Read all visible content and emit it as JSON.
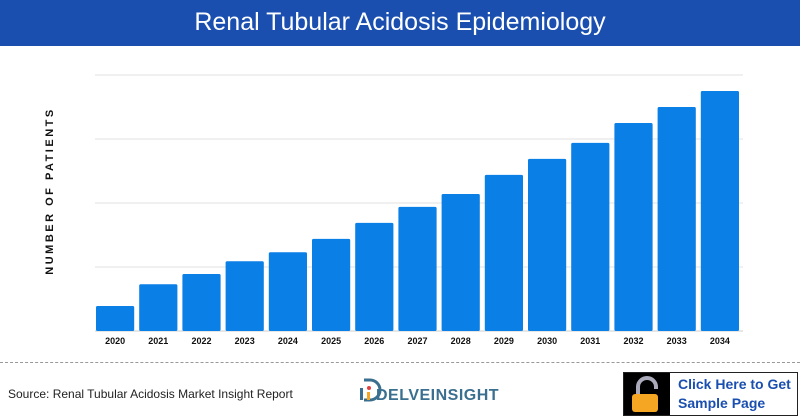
{
  "header": {
    "title": "Renal Tubular Acidosis Epidemiology"
  },
  "chart_data": {
    "type": "bar",
    "title": "Renal Tubular Acidosis Epidemiology",
    "xlabel": "",
    "ylabel": "NUMBER OF PATIENTS",
    "categories": [
      "2020",
      "2021",
      "2022",
      "2023",
      "2024",
      "2025",
      "2026",
      "2027",
      "2028",
      "2029",
      "2030",
      "2031",
      "2032",
      "2033",
      "2034"
    ],
    "values": [
      0.39,
      0.73,
      0.89,
      1.09,
      1.23,
      1.44,
      1.69,
      1.94,
      2.14,
      2.44,
      2.69,
      2.94,
      3.25,
      3.5,
      3.75
    ],
    "ylim": [
      0,
      4
    ],
    "y_tick_labels_shown": false,
    "grid": true,
    "bar_color": "#0a7fe6"
  },
  "footer": {
    "source": "Source: Renal Tubular Acidosis Market Insight Report",
    "logo": "DELVEINSIGHT",
    "cta_line1": "Click Here to Get",
    "cta_line2": "Sample Page",
    "lock_icon_color": "#f5a623"
  }
}
